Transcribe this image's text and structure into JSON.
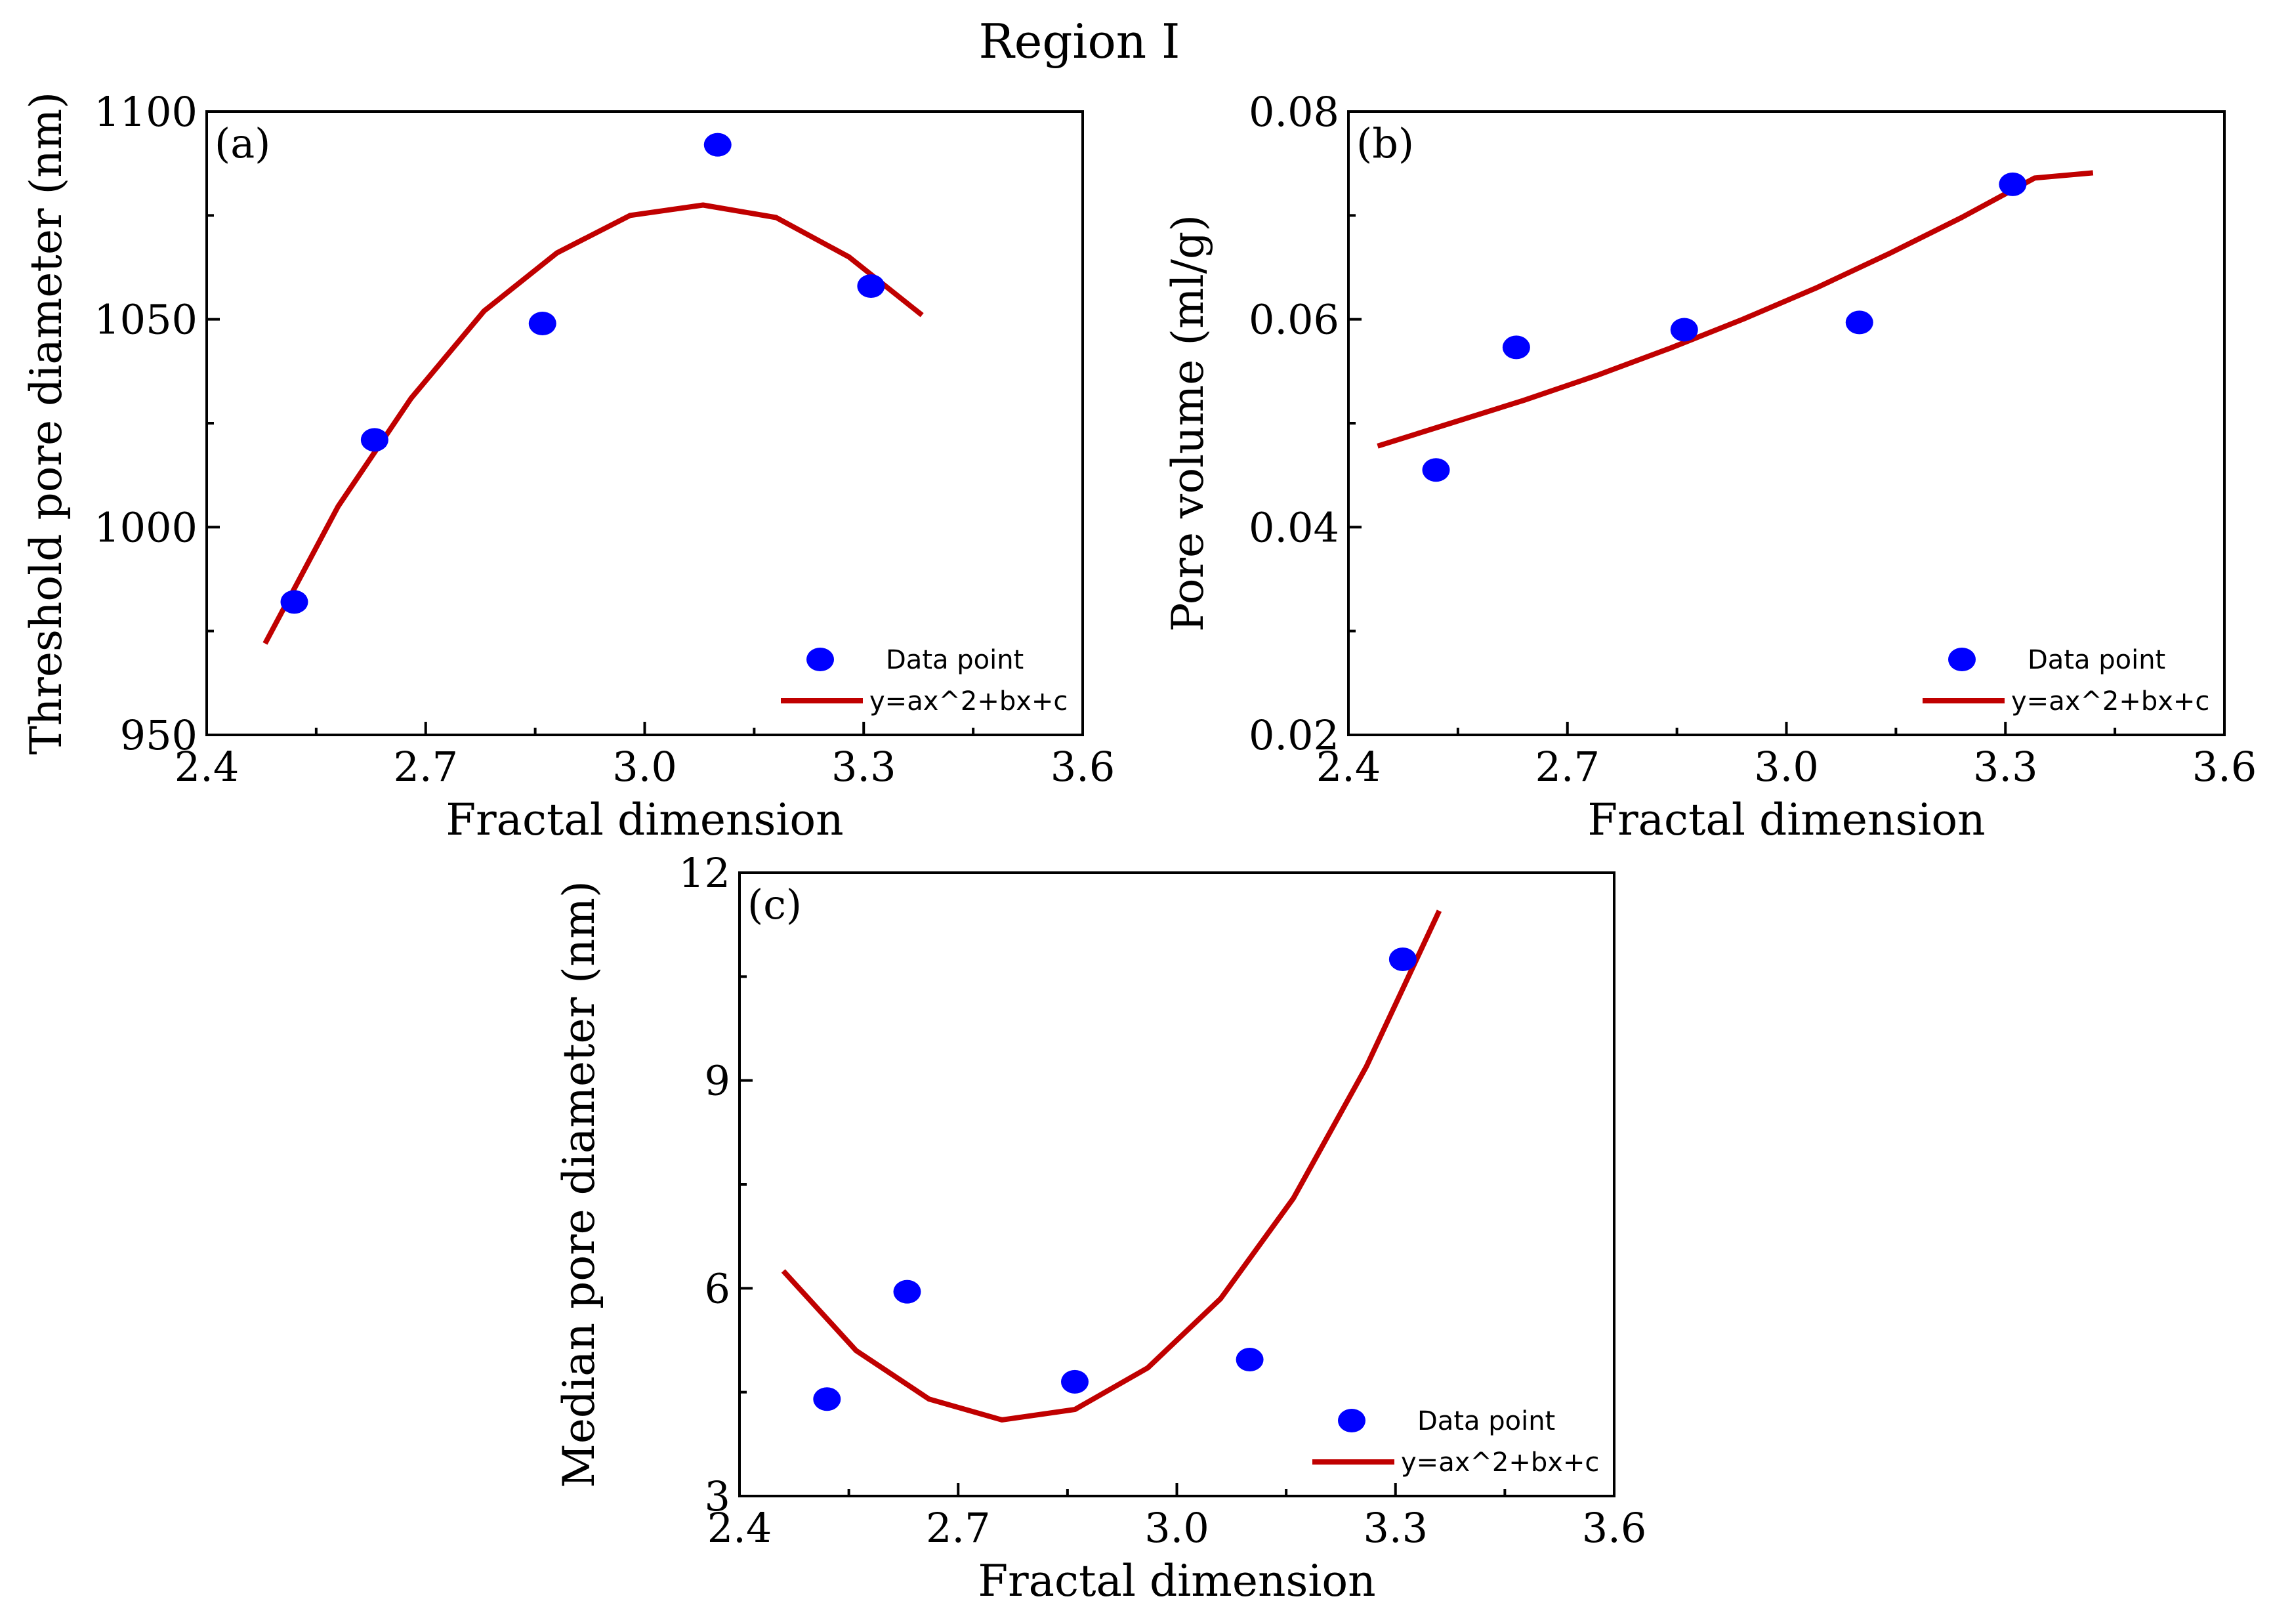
{
  "figure_title": "Region Ⅰ",
  "colors": {
    "points": "#0000ff",
    "fit": "#c00000"
  },
  "chart_data": [
    {
      "id": "a",
      "type": "scatter",
      "panel_label": "(a)",
      "title": "",
      "xlabel": "Fractal dimension",
      "ylabel": "Threshold pore diameter (nm)",
      "xlim": [
        2.4,
        3.6
      ],
      "ylim": [
        950,
        1100
      ],
      "xticks": [
        "2.4",
        "2.7",
        "3.0",
        "3.3",
        "3.6"
      ],
      "yticks": [
        "950",
        "1000",
        "1050",
        "1100"
      ],
      "legend": {
        "points_label": "Data point",
        "fit_label": "y=ax^2+bx+c",
        "position": "bottom-right"
      },
      "points": {
        "x": [
          2.52,
          2.63,
          2.86,
          3.1,
          3.31
        ],
        "y": [
          982,
          1021,
          1049,
          1092,
          1058
        ]
      },
      "fit": {
        "x": [
          2.48,
          2.58,
          2.68,
          2.78,
          2.88,
          2.98,
          3.08,
          3.18,
          3.28,
          3.38
        ],
        "y": [
          972,
          1005,
          1031,
          1052,
          1066,
          1075,
          1077.5,
          1074.5,
          1065,
          1051
        ]
      }
    },
    {
      "id": "b",
      "type": "scatter",
      "panel_label": "(b)",
      "title": "",
      "xlabel": "Fractal dimension",
      "ylabel": "Pore volume (ml/g)",
      "xlim": [
        2.4,
        3.6
      ],
      "ylim": [
        0.02,
        0.08
      ],
      "xticks": [
        "2.4",
        "2.7",
        "3.0",
        "3.3",
        "3.6"
      ],
      "yticks": [
        "0.02",
        "0.04",
        "0.06",
        "0.08"
      ],
      "legend": {
        "points_label": "Data point",
        "fit_label": "y=ax^2+bx+c",
        "position": "bottom-right"
      },
      "points": {
        "x": [
          2.52,
          2.63,
          2.86,
          3.1,
          3.31
        ],
        "y": [
          0.0455,
          0.0573,
          0.059,
          0.0597,
          0.073
        ]
      },
      "fit": {
        "x": [
          2.44,
          2.54,
          2.64,
          2.74,
          2.84,
          2.94,
          3.04,
          3.14,
          3.24,
          3.34,
          3.42
        ],
        "y": [
          0.0478,
          0.05,
          0.0522,
          0.0546,
          0.0572,
          0.06,
          0.063,
          0.0663,
          0.0698,
          0.0736,
          0.0741
        ]
      }
    },
    {
      "id": "c",
      "type": "scatter",
      "panel_label": "(c)",
      "title": "",
      "xlabel": "Fractal dimension",
      "ylabel": "Median pore diameter (nm)",
      "xlim": [
        2.4,
        3.6
      ],
      "ylim": [
        3,
        12
      ],
      "xticks": [
        "2.4",
        "2.7",
        "3.0",
        "3.3",
        "3.6"
      ],
      "yticks": [
        "3",
        "6",
        "9",
        "12"
      ],
      "legend": {
        "points_label": "Data point",
        "fit_label": "y=ax^2+bx+c",
        "position": "bottom-right"
      },
      "points": {
        "x": [
          2.52,
          2.63,
          2.86,
          3.1,
          3.31
        ],
        "y": [
          4.4,
          5.95,
          4.65,
          4.97,
          10.75
        ]
      },
      "fit": {
        "x": [
          2.46,
          2.56,
          2.66,
          2.76,
          2.86,
          2.96,
          3.06,
          3.16,
          3.26,
          3.36
        ],
        "y": [
          6.25,
          5.1,
          4.4,
          4.1,
          4.25,
          4.85,
          5.85,
          7.3,
          9.2,
          11.45
        ]
      }
    }
  ]
}
